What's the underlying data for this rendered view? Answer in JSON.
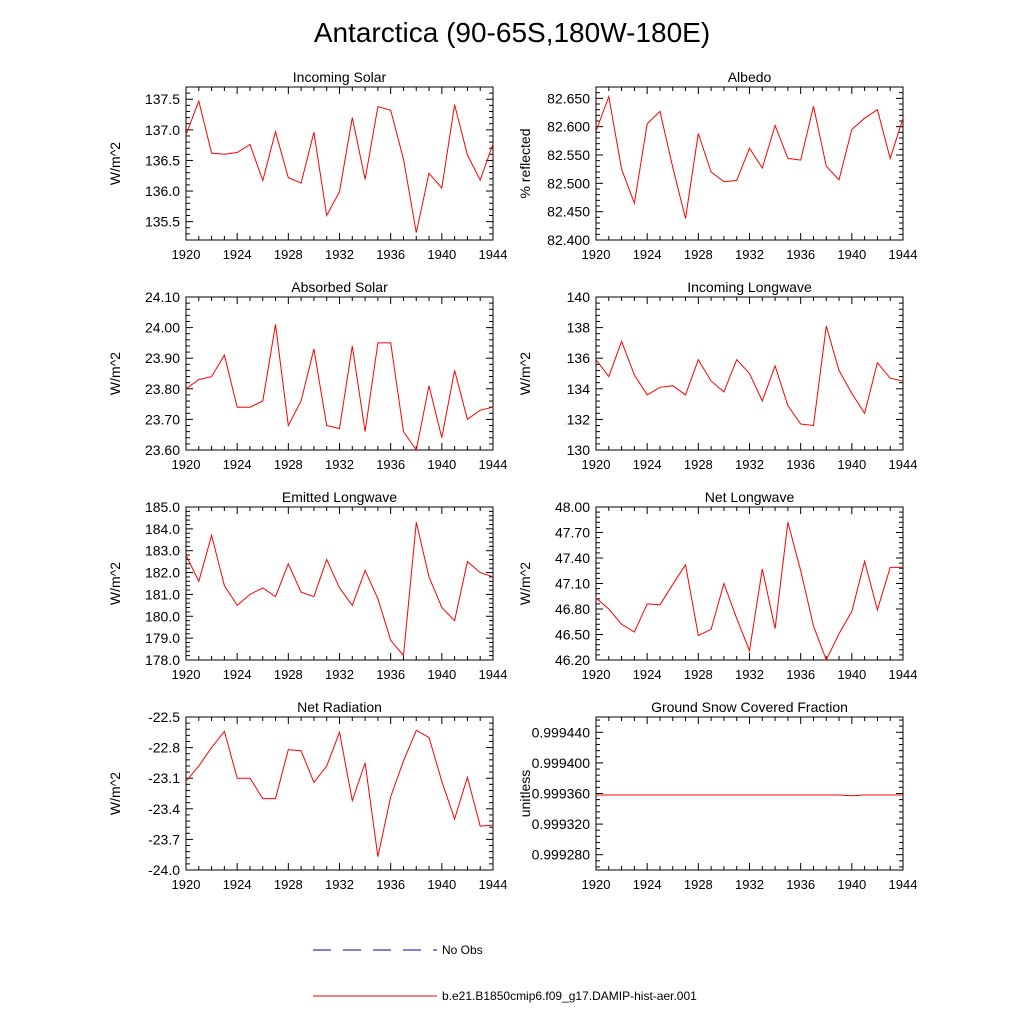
{
  "title": "Antarctica (90-65S,180W-180E)",
  "colors": {
    "model": "#ff0000",
    "obs": "#0000aa",
    "axis": "#000000"
  },
  "legend": {
    "obs_label": "No Obs",
    "model_label": "b.e21.B1850cmip6.f09_g17.DAMIP-hist-aer.001"
  },
  "chart_data": [
    {
      "type": "line",
      "title": "Incoming Solar",
      "ylabel": "W/m^2",
      "xlim": [
        1920,
        1944
      ],
      "ylim": [
        135.2,
        137.7
      ],
      "xticks": [
        1920,
        1924,
        1928,
        1932,
        1936,
        1940,
        1944
      ],
      "yticks": [
        135.5,
        136.0,
        136.5,
        137.0,
        137.5
      ],
      "ytick_labels": [
        "135.5",
        "136.0",
        "136.5",
        "137.0",
        "137.5"
      ],
      "x": [
        1920,
        1921,
        1922,
        1923,
        1924,
        1925,
        1926,
        1927,
        1928,
        1929,
        1930,
        1931,
        1932,
        1933,
        1934,
        1935,
        1936,
        1937,
        1938,
        1939,
        1940,
        1941,
        1942,
        1943,
        1944
      ],
      "series": [
        {
          "values": [
            136.92,
            137.47,
            136.62,
            136.6,
            136.63,
            136.76,
            136.17,
            136.97,
            136.22,
            136.13,
            136.96,
            135.6,
            135.99,
            137.2,
            136.19,
            137.38,
            137.32,
            136.52,
            135.32,
            136.29,
            136.05,
            137.41,
            136.59,
            136.18,
            136.77
          ]
        }
      ]
    },
    {
      "type": "line",
      "title": "Albedo",
      "ylabel": "% reflected",
      "xlim": [
        1920,
        1944
      ],
      "ylim": [
        82.4,
        82.67
      ],
      "xticks": [
        1920,
        1924,
        1928,
        1932,
        1936,
        1940,
        1944
      ],
      "yticks": [
        82.4,
        82.45,
        82.5,
        82.55,
        82.6,
        82.65
      ],
      "ytick_labels": [
        "82.400",
        "82.450",
        "82.500",
        "82.550",
        "82.600",
        "82.650"
      ],
      "x": [
        1920,
        1921,
        1922,
        1923,
        1924,
        1925,
        1926,
        1927,
        1928,
        1929,
        1930,
        1931,
        1932,
        1933,
        1934,
        1935,
        1936,
        1937,
        1938,
        1939,
        1940,
        1941,
        1942,
        1943,
        1944
      ],
      "series": [
        {
          "values": [
            82.592,
            82.653,
            82.525,
            82.465,
            82.605,
            82.627,
            82.528,
            82.438,
            82.588,
            82.52,
            82.503,
            82.505,
            82.562,
            82.527,
            82.602,
            82.544,
            82.541,
            82.636,
            82.53,
            82.506,
            82.595,
            82.615,
            82.63,
            82.544,
            82.615
          ]
        }
      ]
    },
    {
      "type": "line",
      "title": "Absorbed Solar",
      "ylabel": "W/m^2",
      "xlim": [
        1920,
        1944
      ],
      "ylim": [
        23.6,
        24.1
      ],
      "xticks": [
        1920,
        1924,
        1928,
        1932,
        1936,
        1940,
        1944
      ],
      "yticks": [
        23.6,
        23.7,
        23.8,
        23.9,
        24.0,
        24.1
      ],
      "ytick_labels": [
        "23.60",
        "23.70",
        "23.80",
        "23.90",
        "24.00",
        "24.10"
      ],
      "x": [
        1920,
        1921,
        1922,
        1923,
        1924,
        1925,
        1926,
        1927,
        1928,
        1929,
        1930,
        1931,
        1932,
        1933,
        1934,
        1935,
        1936,
        1937,
        1938,
        1939,
        1940,
        1941,
        1942,
        1943,
        1944
      ],
      "series": [
        {
          "values": [
            23.8,
            23.83,
            23.84,
            23.91,
            23.74,
            23.74,
            23.76,
            24.01,
            23.68,
            23.76,
            23.93,
            23.68,
            23.67,
            23.94,
            23.66,
            23.95,
            23.95,
            23.66,
            23.6,
            23.81,
            23.64,
            23.86,
            23.7,
            23.73,
            23.74
          ]
        }
      ]
    },
    {
      "type": "line",
      "title": "Incoming Longwave",
      "ylabel": "W/m^2",
      "xlim": [
        1920,
        1944
      ],
      "ylim": [
        130,
        140
      ],
      "xticks": [
        1920,
        1924,
        1928,
        1932,
        1936,
        1940,
        1944
      ],
      "yticks": [
        130,
        132,
        134,
        136,
        138,
        140
      ],
      "ytick_labels": [
        "130",
        "132",
        "134",
        "136",
        "138",
        "140"
      ],
      "x": [
        1920,
        1921,
        1922,
        1923,
        1924,
        1925,
        1926,
        1927,
        1928,
        1929,
        1930,
        1931,
        1932,
        1933,
        1934,
        1935,
        1936,
        1937,
        1938,
        1939,
        1940,
        1941,
        1942,
        1943,
        1944
      ],
      "series": [
        {
          "values": [
            135.9,
            134.8,
            137.1,
            134.9,
            133.6,
            134.1,
            134.2,
            133.6,
            135.9,
            134.5,
            133.8,
            135.9,
            135.0,
            133.2,
            135.5,
            132.9,
            131.7,
            131.6,
            138.1,
            135.2,
            133.7,
            132.4,
            135.7,
            134.7,
            134.5
          ]
        }
      ]
    },
    {
      "type": "line",
      "title": "Emitted Longwave",
      "ylabel": "W/m^2",
      "xlim": [
        1920,
        1944
      ],
      "ylim": [
        178,
        185
      ],
      "xticks": [
        1920,
        1924,
        1928,
        1932,
        1936,
        1940,
        1944
      ],
      "yticks": [
        178,
        179,
        180,
        181,
        182,
        183,
        184,
        185
      ],
      "ytick_labels": [
        "178.0",
        "179.0",
        "180.0",
        "181.0",
        "182.0",
        "183.0",
        "184.0",
        "185.0"
      ],
      "x": [
        1920,
        1921,
        1922,
        1923,
        1924,
        1925,
        1926,
        1927,
        1928,
        1929,
        1930,
        1931,
        1932,
        1933,
        1934,
        1935,
        1936,
        1937,
        1938,
        1939,
        1940,
        1941,
        1942,
        1943,
        1944
      ],
      "series": [
        {
          "values": [
            182.8,
            181.6,
            183.7,
            181.4,
            180.5,
            181.0,
            181.3,
            180.9,
            182.4,
            181.1,
            180.9,
            182.6,
            181.3,
            180.5,
            182.1,
            180.8,
            178.9,
            178.2,
            184.3,
            181.8,
            180.4,
            179.8,
            182.5,
            182.0,
            181.8
          ]
        }
      ]
    },
    {
      "type": "line",
      "title": "Net Longwave",
      "ylabel": "W/m^2",
      "xlim": [
        1920,
        1944
      ],
      "ylim": [
        46.2,
        48.0
      ],
      "xticks": [
        1920,
        1924,
        1928,
        1932,
        1936,
        1940,
        1944
      ],
      "yticks": [
        46.2,
        46.5,
        46.8,
        47.1,
        47.4,
        47.7,
        48.0
      ],
      "ytick_labels": [
        "46.20",
        "46.50",
        "46.80",
        "47.10",
        "47.40",
        "47.70",
        "48.00"
      ],
      "x": [
        1920,
        1921,
        1922,
        1923,
        1924,
        1925,
        1926,
        1927,
        1928,
        1929,
        1930,
        1931,
        1932,
        1933,
        1934,
        1935,
        1936,
        1937,
        1938,
        1939,
        1940,
        1941,
        1942,
        1943,
        1944
      ],
      "series": [
        {
          "values": [
            46.93,
            46.8,
            46.62,
            46.53,
            46.86,
            46.85,
            47.09,
            47.32,
            46.49,
            46.56,
            47.1,
            46.69,
            46.31,
            47.27,
            46.57,
            47.82,
            47.25,
            46.6,
            46.2,
            46.51,
            46.77,
            47.36,
            46.79,
            47.29,
            47.29
          ]
        }
      ]
    },
    {
      "type": "line",
      "title": "Net Radiation",
      "ylabel": "W/m^2",
      "xlim": [
        1920,
        1944
      ],
      "ylim": [
        -24.0,
        -22.5
      ],
      "xticks": [
        1920,
        1924,
        1928,
        1932,
        1936,
        1940,
        1944
      ],
      "yticks": [
        -24.0,
        -23.7,
        -23.4,
        -23.1,
        -22.8,
        -22.5
      ],
      "ytick_labels": [
        "-24.0",
        "-23.7",
        "-23.4",
        "-23.1",
        "-22.8",
        "-22.5"
      ],
      "x": [
        1920,
        1921,
        1922,
        1923,
        1924,
        1925,
        1926,
        1927,
        1928,
        1929,
        1930,
        1931,
        1932,
        1933,
        1934,
        1935,
        1936,
        1937,
        1938,
        1939,
        1940,
        1941,
        1942,
        1943,
        1944
      ],
      "series": [
        {
          "values": [
            -23.13,
            -22.98,
            -22.8,
            -22.64,
            -23.1,
            -23.1,
            -23.3,
            -23.3,
            -22.82,
            -22.83,
            -23.14,
            -22.98,
            -22.65,
            -23.32,
            -22.95,
            -23.87,
            -23.28,
            -22.93,
            -22.63,
            -22.7,
            -23.13,
            -23.5,
            -23.09,
            -23.57,
            -23.56
          ]
        }
      ]
    },
    {
      "type": "line",
      "title": "Ground Snow Covered Fraction",
      "ylabel": "unitless",
      "xlim": [
        1920,
        1944
      ],
      "ylim": [
        0.99926,
        0.99946
      ],
      "xticks": [
        1920,
        1924,
        1928,
        1932,
        1936,
        1940,
        1944
      ],
      "yticks": [
        0.99928,
        0.99932,
        0.99936,
        0.9994,
        0.99944
      ],
      "ytick_labels": [
        "0.999280",
        "0.999320",
        "0.999360",
        "0.999400",
        "0.999440"
      ],
      "x": [
        1920,
        1921,
        1922,
        1923,
        1924,
        1925,
        1926,
        1927,
        1928,
        1929,
        1930,
        1931,
        1932,
        1933,
        1934,
        1935,
        1936,
        1937,
        1938,
        1939,
        1940,
        1941,
        1942,
        1943,
        1944
      ],
      "series": [
        {
          "values": [
            0.999358,
            0.999358,
            0.999358,
            0.999358,
            0.999358,
            0.999358,
            0.999358,
            0.999358,
            0.999358,
            0.999358,
            0.999358,
            0.999358,
            0.999358,
            0.999358,
            0.999358,
            0.999358,
            0.999358,
            0.999358,
            0.999358,
            0.999358,
            0.999357,
            0.999358,
            0.999358,
            0.999358,
            0.999358
          ]
        }
      ]
    }
  ]
}
